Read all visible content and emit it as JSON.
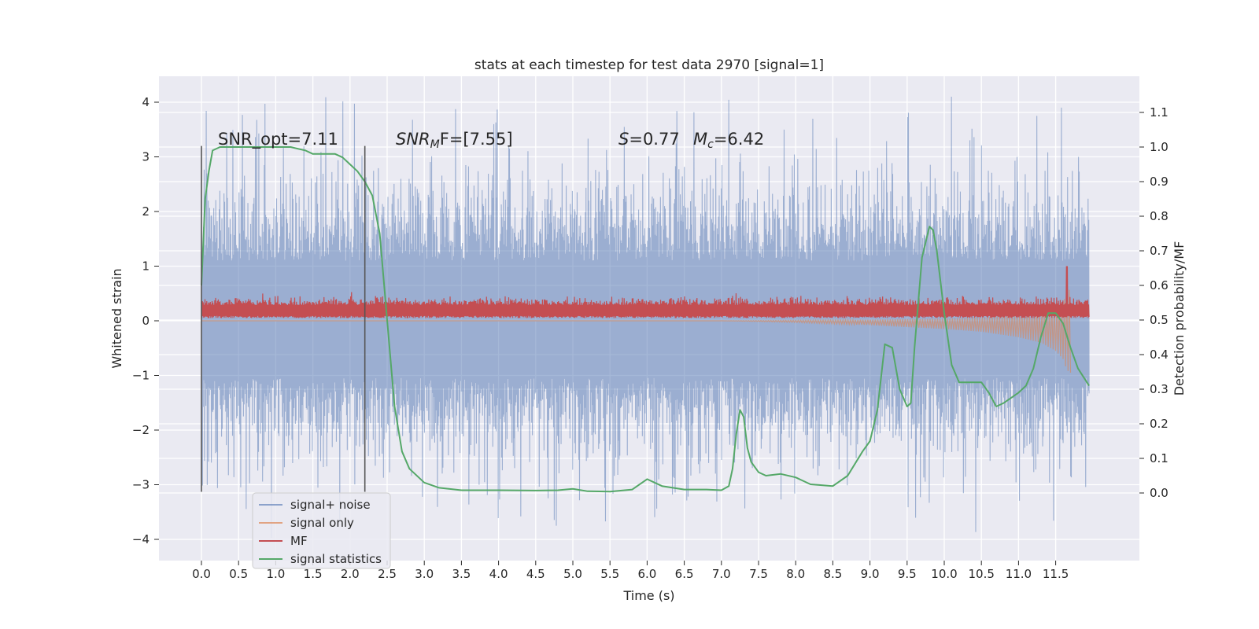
{
  "chart_data": {
    "type": "line",
    "title": "stats at each timestep for test data 2970 [signal=1]",
    "xlabel": "Time (s)",
    "ylabel_left": "Whitened strain",
    "ylabel_right": "Detection probability/MF",
    "xlim": [
      -0.58,
      12.6
    ],
    "ylim_left": [
      -4.4,
      4.5
    ],
    "ylim_right": [
      -0.2,
      1.2
    ],
    "x_ticks": [
      "0.0",
      "0.5",
      "1.0",
      "1.5",
      "2.0",
      "2.5",
      "3.0",
      "3.5",
      "4.0",
      "4.5",
      "5.0",
      "5.5",
      "6.0",
      "6.5",
      "7.0",
      "7.5",
      "8.0",
      "8.5",
      "9.0",
      "9.5",
      "10.0",
      "10.5",
      "11.0",
      "11.5"
    ],
    "y_left_ticks": [
      "4",
      "3",
      "2",
      "1",
      "0",
      "−1",
      "−2",
      "−3",
      "−4"
    ],
    "y_right_ticks": [
      "1.1",
      "1.0",
      "0.9",
      "0.8",
      "0.7",
      "0.6",
      "0.5",
      "0.4",
      "0.3",
      "0.2",
      "0.1",
      "0.0"
    ],
    "grid": true,
    "legend_placement": "lower-left",
    "annotations": {
      "snr_opt": "SNR_opt=7.11",
      "snr_mf_italic": "SNR",
      "snr_mf_sub": "M",
      "snr_mf_rest": "F=[7.55]",
      "s_italic": "S",
      "s_rest": "=0.77",
      "mc_italic": "M",
      "mc_sub": "c",
      "mc_rest": "=6.42"
    },
    "vertical_markers_x": [
      0.0,
      2.2
    ],
    "series": [
      {
        "name": "signal+ noise",
        "color": "#4c72b0",
        "axis": "left",
        "x_range": [
          0.0,
          11.95
        ],
        "envelope": {
          "typical_high": 2.0,
          "typical_low": -1.9,
          "peak_high": 4.1,
          "peak_low": -4.0
        }
      },
      {
        "name": "signal only",
        "color": "#dd8452",
        "axis": "left",
        "x": [
          0.0,
          7.0,
          8.0,
          9.0,
          10.0,
          10.5,
          11.0,
          11.3,
          11.5,
          11.6,
          11.65,
          11.7
        ],
        "upper": [
          0.0,
          0.0,
          0.01,
          0.02,
          0.04,
          0.06,
          0.1,
          0.15,
          0.22,
          0.35,
          0.5,
          0.6
        ],
        "lower": [
          0.0,
          0.0,
          -0.03,
          -0.08,
          -0.15,
          -0.2,
          -0.3,
          -0.4,
          -0.55,
          -0.7,
          -0.9,
          -0.95
        ]
      },
      {
        "name": "MF",
        "color": "#c44e52",
        "axis": "left",
        "x_range": [
          0.0,
          11.95
        ],
        "baseline_band": [
          0.05,
          0.35
        ],
        "spike_x": 11.65,
        "spike_value": 1.0
      },
      {
        "name": "signal statistics",
        "color": "#55a868",
        "axis": "right",
        "x": [
          0.0,
          0.05,
          0.1,
          0.15,
          0.25,
          0.5,
          0.8,
          1.0,
          1.2,
          1.4,
          1.5,
          1.6,
          1.8,
          1.9,
          2.0,
          2.1,
          2.2,
          2.3,
          2.4,
          2.5,
          2.6,
          2.7,
          2.8,
          3.0,
          3.2,
          3.5,
          4.0,
          4.5,
          4.8,
          5.0,
          5.2,
          5.5,
          5.8,
          6.0,
          6.2,
          6.5,
          6.8,
          7.0,
          7.1,
          7.15,
          7.2,
          7.25,
          7.3,
          7.35,
          7.4,
          7.5,
          7.6,
          7.8,
          8.0,
          8.2,
          8.5,
          8.7,
          8.9,
          9.0,
          9.1,
          9.2,
          9.3,
          9.4,
          9.5,
          9.55,
          9.6,
          9.7,
          9.8,
          9.85,
          9.9,
          10.0,
          10.1,
          10.2,
          10.3,
          10.5,
          10.6,
          10.7,
          10.8,
          11.0,
          11.1,
          11.2,
          11.3,
          11.4,
          11.5,
          11.6,
          11.7,
          11.8,
          11.95
        ],
        "y": [
          0.6,
          0.85,
          0.93,
          0.99,
          1.0,
          1.0,
          1.0,
          1.0,
          1.0,
          0.99,
          0.98,
          0.98,
          0.98,
          0.97,
          0.95,
          0.93,
          0.9,
          0.86,
          0.75,
          0.5,
          0.25,
          0.12,
          0.07,
          0.03,
          0.015,
          0.008,
          0.008,
          0.007,
          0.008,
          0.012,
          0.005,
          0.004,
          0.01,
          0.04,
          0.02,
          0.01,
          0.01,
          0.008,
          0.02,
          0.07,
          0.17,
          0.24,
          0.22,
          0.13,
          0.09,
          0.06,
          0.05,
          0.055,
          0.045,
          0.025,
          0.02,
          0.05,
          0.12,
          0.15,
          0.24,
          0.43,
          0.42,
          0.3,
          0.25,
          0.26,
          0.42,
          0.68,
          0.77,
          0.76,
          0.7,
          0.52,
          0.37,
          0.32,
          0.32,
          0.32,
          0.29,
          0.25,
          0.26,
          0.29,
          0.31,
          0.36,
          0.45,
          0.52,
          0.52,
          0.49,
          0.42,
          0.36,
          0.31
        ]
      }
    ]
  }
}
